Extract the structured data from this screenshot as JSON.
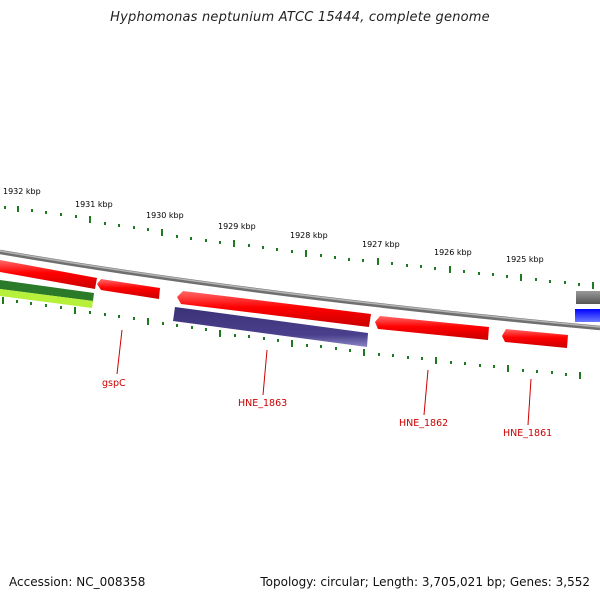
{
  "title": "Hyphomonas neptunium ATCC 15444, complete genome",
  "footer": {
    "accession": "Accession: NC_008358",
    "summary": "Topology: circular; Length: 3,705,021 bp; Genes: 3,552"
  },
  "colors": {
    "backbone": "#8a8a8a",
    "ticks": "#1f7a1f",
    "tick_labels": "#000000",
    "gene_forward": "#ff1a1a",
    "gene_reverse_dark": "#4a3f8c",
    "gene_other_green": "#2a7a2a",
    "gene_other_lime": "#b6f03a",
    "gene_gray": "#6e6e6e",
    "gene_blue": "#1a1aff",
    "gene_labels": "#cc0000"
  },
  "scale": {
    "unit": "kbp",
    "ticks": [
      {
        "label": "1932 kbp"
      },
      {
        "label": "1931 kbp"
      },
      {
        "label": "1930 kbp"
      },
      {
        "label": "1929 kbp"
      },
      {
        "label": "1928 kbp"
      },
      {
        "label": "1927 kbp"
      },
      {
        "label": "1926 kbp"
      },
      {
        "label": "1925 kbp"
      }
    ]
  },
  "genes": [
    {
      "label": "gspC"
    },
    {
      "label": "HNE_1863"
    },
    {
      "label": "HNE_1862"
    },
    {
      "label": "HNE_1861"
    }
  ]
}
